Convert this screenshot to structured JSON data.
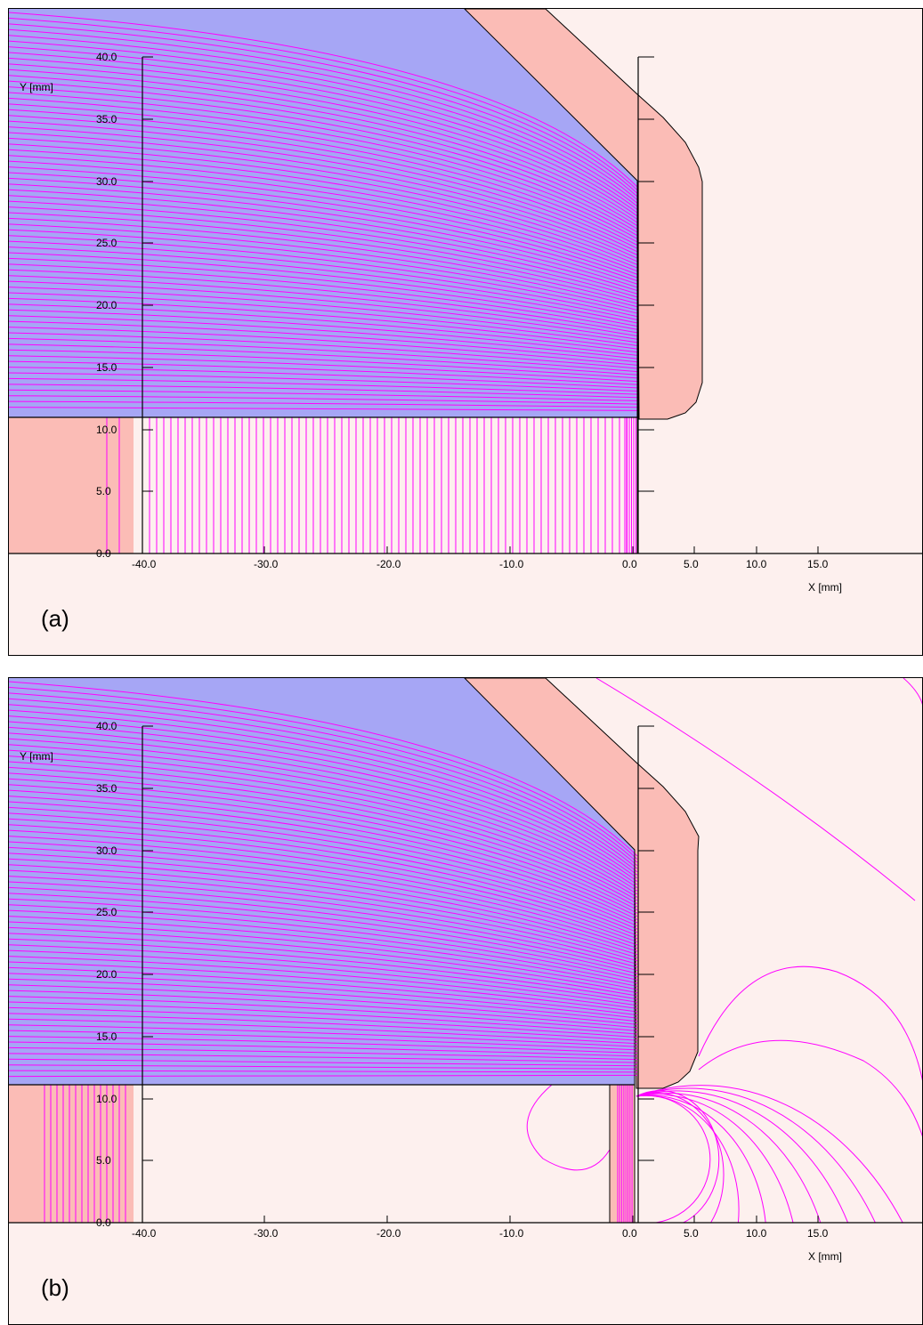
{
  "figure": {
    "panels": [
      {
        "id": "a",
        "label": "(a)",
        "x_axis": {
          "label": "X [mm]",
          "ticks": [
            "-40.0",
            "-30.0",
            "-20.0",
            "-10.0",
            "0.0",
            "5.0",
            "10.0",
            "15.0"
          ]
        },
        "y_axis": {
          "label": "Y [mm]",
          "ticks": [
            "0.0",
            "5.0",
            "10.0",
            "15.0",
            "20.0",
            "25.0",
            "30.0",
            "35.0",
            "40.0"
          ]
        }
      },
      {
        "id": "b",
        "label": "(b)",
        "x_axis": {
          "label": "X [mm]",
          "ticks": [
            "-40.0",
            "-30.0",
            "-20.0",
            "-10.0",
            "0.0",
            "5.0",
            "10.0",
            "15.0"
          ]
        },
        "y_axis": {
          "label": "Y [mm]",
          "ticks": [
            "0.0",
            "5.0",
            "10.0",
            "15.0",
            "20.0",
            "25.0",
            "30.0",
            "35.0",
            "40.0"
          ]
        }
      }
    ],
    "colors": {
      "field_line": "#ff00ff",
      "vacuum_region": "#a6a6f5",
      "electrode": "#fbbcb6",
      "background_region": "#fdf0ee",
      "outline": "#000000"
    }
  }
}
